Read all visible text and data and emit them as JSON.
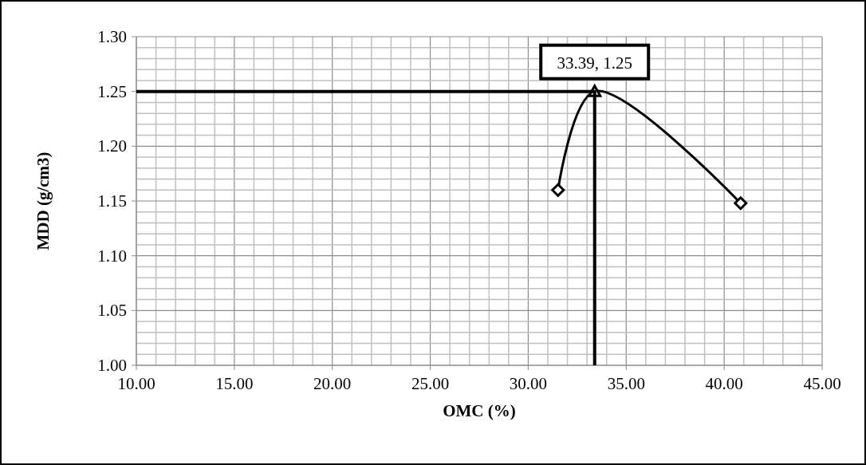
{
  "chart_data": {
    "type": "line",
    "xlabel": "OMC (%)",
    "ylabel": "MDD (g/cm3)",
    "xlim": [
      10,
      45
    ],
    "xticks": [
      {
        "value": 10,
        "label": "10.00"
      },
      {
        "value": 11,
        "label": null
      },
      {
        "value": 12,
        "label": null
      },
      {
        "value": 13,
        "label": null
      },
      {
        "value": 14,
        "label": null
      },
      {
        "value": 15,
        "label": "15.00"
      },
      {
        "value": 16,
        "label": null
      },
      {
        "value": 17,
        "label": null
      },
      {
        "value": 18,
        "label": null
      },
      {
        "value": 19,
        "label": null
      },
      {
        "value": 20,
        "label": "20.00"
      },
      {
        "value": 21,
        "label": null
      },
      {
        "value": 22,
        "label": null
      },
      {
        "value": 23,
        "label": null
      },
      {
        "value": 24,
        "label": null
      },
      {
        "value": 25,
        "label": "25.00"
      },
      {
        "value": 26,
        "label": null
      },
      {
        "value": 27,
        "label": null
      },
      {
        "value": 28,
        "label": null
      },
      {
        "value": 29,
        "label": null
      },
      {
        "value": 30,
        "label": "30.00"
      },
      {
        "value": 31,
        "label": null
      },
      {
        "value": 32,
        "label": null
      },
      {
        "value": 33,
        "label": null
      },
      {
        "value": 34,
        "label": null
      },
      {
        "value": 35,
        "label": "35.00"
      },
      {
        "value": 36,
        "label": null
      },
      {
        "value": 37,
        "label": null
      },
      {
        "value": 38,
        "label": null
      },
      {
        "value": 39,
        "label": null
      },
      {
        "value": 40,
        "label": "40.00"
      },
      {
        "value": 41,
        "label": null
      },
      {
        "value": 42,
        "label": null
      },
      {
        "value": 43,
        "label": null
      },
      {
        "value": 44,
        "label": null
      },
      {
        "value": 45,
        "label": "45.00"
      }
    ],
    "ylim": [
      1.0,
      1.3
    ],
    "yticks": [
      {
        "value": 1.0,
        "label": "1.00"
      },
      {
        "value": 1.01,
        "label": null
      },
      {
        "value": 1.02,
        "label": null
      },
      {
        "value": 1.03,
        "label": null
      },
      {
        "value": 1.04,
        "label": null
      },
      {
        "value": 1.05,
        "label": "1.05"
      },
      {
        "value": 1.06,
        "label": null
      },
      {
        "value": 1.07,
        "label": null
      },
      {
        "value": 1.08,
        "label": null
      },
      {
        "value": 1.09,
        "label": null
      },
      {
        "value": 1.1,
        "label": "1.10"
      },
      {
        "value": 1.11,
        "label": null
      },
      {
        "value": 1.12,
        "label": null
      },
      {
        "value": 1.13,
        "label": null
      },
      {
        "value": 1.14,
        "label": null
      },
      {
        "value": 1.15,
        "label": "1.15"
      },
      {
        "value": 1.16,
        "label": null
      },
      {
        "value": 1.17,
        "label": null
      },
      {
        "value": 1.18,
        "label": null
      },
      {
        "value": 1.19,
        "label": null
      },
      {
        "value": 1.2,
        "label": "1.20"
      },
      {
        "value": 1.21,
        "label": null
      },
      {
        "value": 1.22,
        "label": null
      },
      {
        "value": 1.23,
        "label": null
      },
      {
        "value": 1.24,
        "label": null
      },
      {
        "value": 1.25,
        "label": "1.25"
      },
      {
        "value": 1.26,
        "label": null
      },
      {
        "value": 1.27,
        "label": null
      },
      {
        "value": 1.28,
        "label": null
      },
      {
        "value": 1.29,
        "label": null
      },
      {
        "value": 1.3,
        "label": "1.30"
      }
    ],
    "grid": true,
    "series": [
      {
        "color": "#000000",
        "marker": "none",
        "x": [
          31.52,
          33.39,
          40.84
        ],
        "values": [
          1.16,
          1.25,
          1.148
        ]
      },
      {
        "type": "scatter",
        "color": "#000000",
        "marker": "diamond",
        "x": [
          31.52,
          40.84
        ],
        "values": [
          1.16,
          1.148
        ]
      },
      {
        "type": "scatter",
        "color": "#000000",
        "marker": "triangle",
        "x": [
          33.39
        ],
        "values": [
          1.25
        ]
      },
      {
        "type": "line",
        "color": "#000000",
        "marker": "none",
        "x": [
          10,
          33.39,
          33.39
        ],
        "values": [
          1.25,
          1.25,
          1.0
        ]
      }
    ],
    "annotations": [
      {
        "text": "33.39, 1.25",
        "x": 33.39,
        "y": 1.25
      }
    ]
  }
}
